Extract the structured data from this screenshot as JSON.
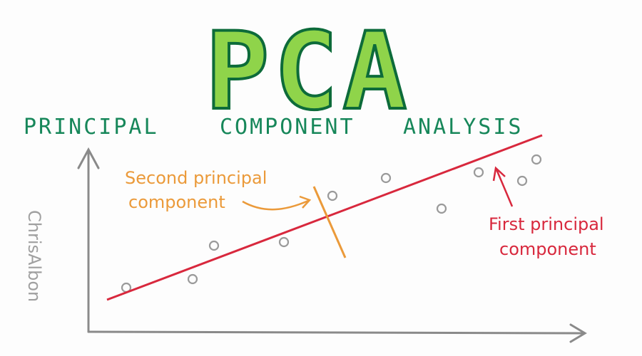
{
  "title": "PCA",
  "subtitle": [
    "PRINCIPAL",
    "COMPONENT",
    "ANALYSIS"
  ],
  "annotations": {
    "second": [
      "Second principal",
      "component"
    ],
    "first": [
      "First principal",
      "component"
    ]
  },
  "author": "ChrisAlbon"
}
